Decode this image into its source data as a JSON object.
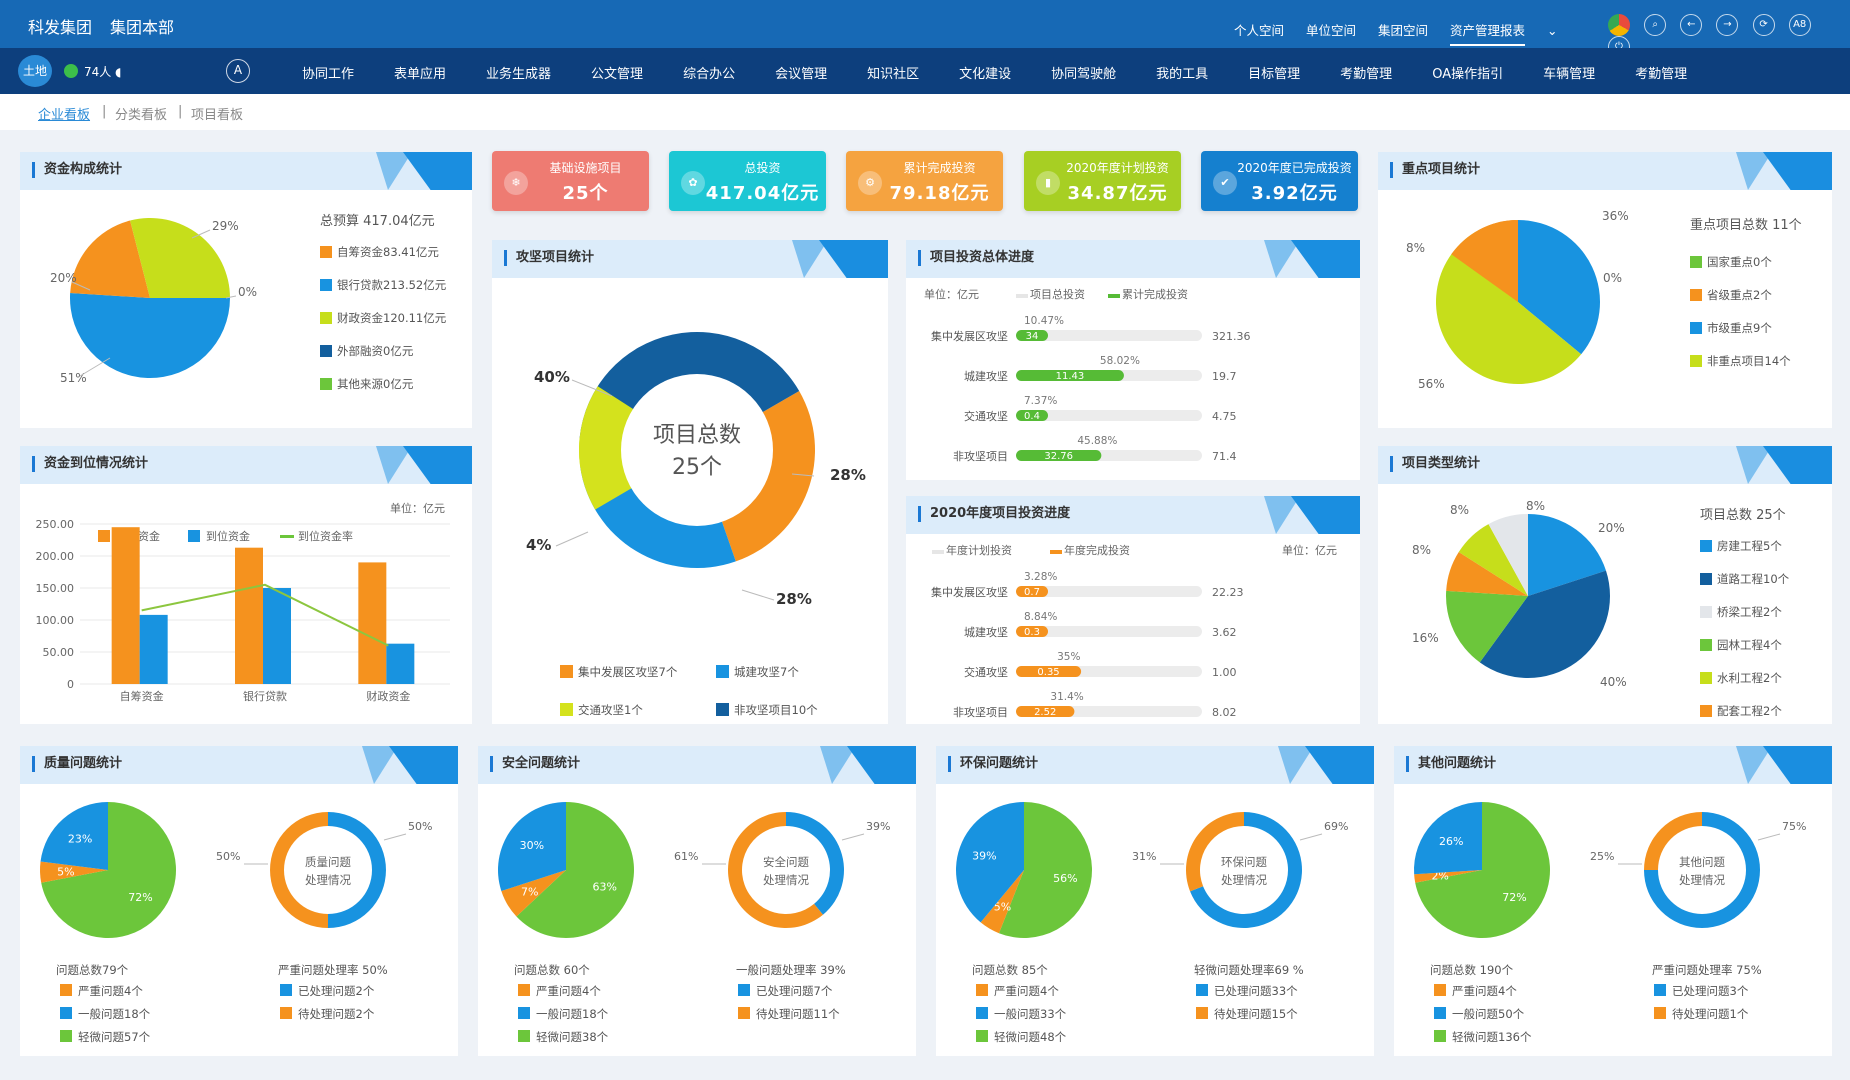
{
  "topbar": {
    "brand1": "科发集团",
    "brand2": "集团本部",
    "links": [
      "个人空间",
      "单位空间",
      "集团空间",
      "资产管理报表"
    ],
    "dropdown": "⌄",
    "icons": [
      "◉",
      "○",
      "←",
      "→",
      "⟳",
      "A8",
      "○"
    ]
  },
  "nav": {
    "land": "土地",
    "online": "74人",
    "logo": "A",
    "menu": [
      "协同工作",
      "表单应用",
      "业务生成器",
      "公文管理",
      "综合办公",
      "会议管理",
      "知识社区",
      "文化建设",
      "协同驾驶舱",
      "我的工具",
      "目标管理",
      "考勤管理",
      "OA操作指引",
      "车辆管理",
      "考勤管理"
    ]
  },
  "crumbs": {
    "items": [
      "企业看板",
      "分类看板",
      "项目看板"
    ],
    "sep": "|"
  },
  "kpis": [
    {
      "label": "基础设施项目",
      "value": "25个",
      "color": "#ee7b72"
    },
    {
      "label": "总投资",
      "value": "417.04亿元",
      "color": "#1cc7d4"
    },
    {
      "label": "累计完成投资",
      "value": "79.18亿元",
      "color": "#f5a340"
    },
    {
      "label": "2020年度计划投资",
      "value": "34.87亿元",
      "color": "#a7cf23"
    },
    {
      "label": "2020年度已完成投资",
      "value": "3.92亿元",
      "color": "#1580cf"
    }
  ],
  "funds": {
    "title": "资金构成统计",
    "budget": "总预算 417.04亿元",
    "slices": [
      {
        "label": "自筹资金83.41亿元",
        "pct": 20,
        "color": "#f5921e"
      },
      {
        "label": "银行贷款213.52亿元",
        "pct": 51,
        "color": "#1893e0"
      },
      {
        "label": "财政资金120.11亿元",
        "pct": 29,
        "color": "#c6de1b"
      },
      {
        "label": "外部融资0亿元",
        "pct": 0,
        "color": "#135f9e"
      },
      {
        "label": "其他来源0亿元",
        "pct": 0,
        "color": "#6cc63b"
      }
    ],
    "pct_labels": [
      "20%",
      "29%",
      "0%",
      "51%"
    ]
  },
  "arrival": {
    "title": "资金到位情况统计",
    "unit": "单位：亿元",
    "legend": [
      "预算资金",
      "到位资金",
      "到位资金率"
    ],
    "y_ticks": [
      "250.00",
      "200.00",
      "150.00",
      "100.00",
      "50.00",
      "0"
    ]
  },
  "keyproj": {
    "title": "攻坚项目统计",
    "center1": "项目总数",
    "center2": "25个",
    "slices": [
      {
        "label": "集中发展区攻坚7个",
        "pct": 28,
        "color": "#f5921e"
      },
      {
        "label": "城建攻坚7个",
        "pct": 28,
        "color": "#1893e0"
      },
      {
        "label": "交通攻坚1个",
        "pct": 4,
        "color": "#d4e21d"
      },
      {
        "label": "非攻坚项目10个",
        "pct": 40,
        "color": "#135f9e"
      }
    ],
    "pct_labels": [
      "40%",
      "28%",
      "4%",
      "28%"
    ]
  },
  "progress": {
    "title": "项目投资总体进度",
    "unit": "单位：亿元",
    "legend": [
      "项目总投资",
      "累计完成投资"
    ],
    "rows": [
      {
        "name": "集中发展区攻坚",
        "pct": "10.47%",
        "val": "34",
        "total": "321.36",
        "frac": 0.1047
      },
      {
        "name": "城建攻坚",
        "pct": "58.02%",
        "val": "11.43",
        "total": "19.7",
        "frac": 0.5802
      },
      {
        "name": "交通攻坚",
        "pct": "7.37%",
        "val": "0.4",
        "total": "4.75",
        "frac": 0.0737
      },
      {
        "name": "非攻坚项目",
        "pct": "45.88%",
        "val": "32.76",
        "total": "71.4",
        "frac": 0.4588
      }
    ]
  },
  "annual": {
    "title": "2020年度项目投资进度",
    "unit": "单位：亿元",
    "legend": [
      "年度计划投资",
      "年度完成投资"
    ],
    "rows": [
      {
        "name": "集中发展区攻坚",
        "pct": "3.28%",
        "val": "0.7",
        "total": "22.23",
        "frac": 0.0328
      },
      {
        "name": "城建攻坚",
        "pct": "8.84%",
        "val": "0.3",
        "total": "3.62",
        "frac": 0.0884
      },
      {
        "name": "交通攻坚",
        "pct": "35%",
        "val": "0.35",
        "total": "1.00",
        "frac": 0.35
      },
      {
        "name": "非攻坚项目",
        "pct": "31.4%",
        "val": "2.52",
        "total": "8.02",
        "frac": 0.314
      }
    ]
  },
  "important": {
    "title": "重点项目统计",
    "total": "重点项目总数 11个",
    "slices": [
      {
        "label": "国家重点0个",
        "pct": 0,
        "color": "#6cc63b"
      },
      {
        "label": "省级重点2个",
        "pct": 8,
        "color": "#f5921e"
      },
      {
        "label": "市级重点9个",
        "pct": 36,
        "color": "#1893e0"
      },
      {
        "label": "非重点项目14个",
        "pct": 56,
        "color": "#c6de1b"
      }
    ],
    "pct_labels": [
      "8%",
      "36%",
      "0%",
      "56%"
    ]
  },
  "ptype": {
    "title": "项目类型统计",
    "total": "项目总数 25个",
    "slices": [
      {
        "label": "房建工程5个",
        "pct": 20,
        "color": "#1893e0"
      },
      {
        "label": "道路工程10个",
        "pct": 40,
        "color": "#135f9e"
      },
      {
        "label": "桥梁工程2个",
        "pct": 8,
        "color": "#e3e6ea"
      },
      {
        "label": "园林工程4个",
        "pct": 16,
        "color": "#6cc63b"
      },
      {
        "label": "水利工程2个",
        "pct": 8,
        "color": "#c6de1b"
      },
      {
        "label": "配套工程2个",
        "pct": 8,
        "color": "#f5921e"
      }
    ],
    "pct_labels": [
      "8%",
      "8%",
      "20%",
      "8%",
      "16%",
      "40%"
    ]
  },
  "issues": [
    {
      "title": "质量问题统计",
      "pie": [
        {
          "p": 72,
          "c": "#6cc63b",
          "t": "72%"
        },
        {
          "p": 5,
          "c": "#f5921e",
          "t": "5%"
        },
        {
          "p": 23,
          "c": "#1893e0",
          "t": "23%"
        }
      ],
      "ring_t1": "质量问题",
      "ring_t2": "处理情况",
      "ring": [
        {
          "p": 50,
          "c": "#1893e0",
          "t": "50%"
        },
        {
          "p": 50,
          "c": "#f5921e",
          "t": "50%"
        }
      ],
      "total": "问题总数79个",
      "rate": "严重问题处理率 50%",
      "l1": [
        "严重问题4个",
        "一般问题18个",
        "轻微问题57个"
      ],
      "l2": [
        "已处理问题2个",
        "待处理问题2个"
      ]
    },
    {
      "title": "安全问题统计",
      "pie": [
        {
          "p": 63,
          "c": "#6cc63b",
          "t": "63%"
        },
        {
          "p": 7,
          "c": "#f5921e",
          "t": "7%"
        },
        {
          "p": 30,
          "c": "#1893e0",
          "t": "30%"
        }
      ],
      "ring_t1": "安全问题",
      "ring_t2": "处理情况",
      "ring": [
        {
          "p": 39,
          "c": "#1893e0",
          "t": "39%"
        },
        {
          "p": 61,
          "c": "#f5921e",
          "t": "61%"
        }
      ],
      "total": "问题总数 60个",
      "rate": "一般问题处理率 39%",
      "l1": [
        "严重问题4个",
        "一般问题18个",
        "轻微问题38个"
      ],
      "l2": [
        "已处理问题7个",
        "待处理问题11个"
      ]
    },
    {
      "title": "环保问题统计",
      "pie": [
        {
          "p": 56,
          "c": "#6cc63b",
          "t": "56%"
        },
        {
          "p": 5,
          "c": "#f5921e",
          "t": "5%"
        },
        {
          "p": 39,
          "c": "#1893e0",
          "t": "39%"
        }
      ],
      "ring_t1": "环保问题",
      "ring_t2": "处理情况",
      "ring": [
        {
          "p": 69,
          "c": "#1893e0",
          "t": "69%"
        },
        {
          "p": 31,
          "c": "#f5921e",
          "t": "31%"
        }
      ],
      "total": "问题总数 85个",
      "rate": "轻微问题处理率69 %",
      "l1": [
        "严重问题4个",
        "一般问题33个",
        "轻微问题48个"
      ],
      "l2": [
        "已处理问题33个",
        "待处理问题15个"
      ]
    },
    {
      "title": "其他问题统计",
      "pie": [
        {
          "p": 72,
          "c": "#6cc63b",
          "t": "72%"
        },
        {
          "p": 2,
          "c": "#f5921e",
          "t": "2%"
        },
        {
          "p": 26,
          "c": "#1893e0",
          "t": "26%"
        }
      ],
      "ring_t1": "其他问题",
      "ring_t2": "处理情况",
      "ring": [
        {
          "p": 75,
          "c": "#1893e0",
          "t": "75%"
        },
        {
          "p": 25,
          "c": "#f5921e",
          "t": "25%"
        }
      ],
      "total": "问题总数 190个",
      "rate": "严重问题处理率 75%",
      "l1": [
        "严重问题4个",
        "一般问题50个",
        "轻微问题136个"
      ],
      "l2": [
        "已处理问题3个",
        "待处理问题1个"
      ]
    }
  ],
  "colors": {
    "orange": "#f5921e",
    "blue": "#1893e0",
    "green": "#6cc63b",
    "lime": "#8cc63f"
  },
  "chart_data": [
    {
      "type": "pie",
      "title": "资金构成统计",
      "categories": [
        "自筹资金",
        "银行贷款",
        "财政资金",
        "外部融资",
        "其他来源"
      ],
      "values": [
        83.41,
        213.52,
        120.11,
        0,
        0
      ]
    },
    {
      "type": "bar",
      "title": "资金到位情况统计",
      "categories": [
        "自筹资金",
        "银行贷款",
        "财政资金"
      ],
      "ylim": [
        0,
        250
      ],
      "series": [
        {
          "name": "预算资金",
          "values": [
            245,
            213,
            190
          ]
        },
        {
          "name": "到位资金",
          "values": [
            108,
            150,
            63
          ]
        },
        {
          "name": "到位资金率",
          "type": "line",
          "values": [
            115,
            155,
            60
          ]
        }
      ]
    },
    {
      "type": "pie",
      "title": "攻坚项目统计",
      "categories": [
        "集中发展区攻坚",
        "城建攻坚",
        "交通攻坚",
        "非攻坚项目"
      ],
      "values": [
        7,
        7,
        1,
        10
      ]
    },
    {
      "type": "pie",
      "title": "重点项目统计",
      "categories": [
        "国家重点",
        "省级重点",
        "市级重点",
        "非重点项目"
      ],
      "values": [
        0,
        2,
        9,
        14
      ]
    },
    {
      "type": "pie",
      "title": "项目类型统计",
      "categories": [
        "房建工程",
        "道路工程",
        "桥梁工程",
        "园林工程",
        "水利工程",
        "配套工程"
      ],
      "values": [
        5,
        10,
        2,
        4,
        2,
        2
      ]
    }
  ]
}
